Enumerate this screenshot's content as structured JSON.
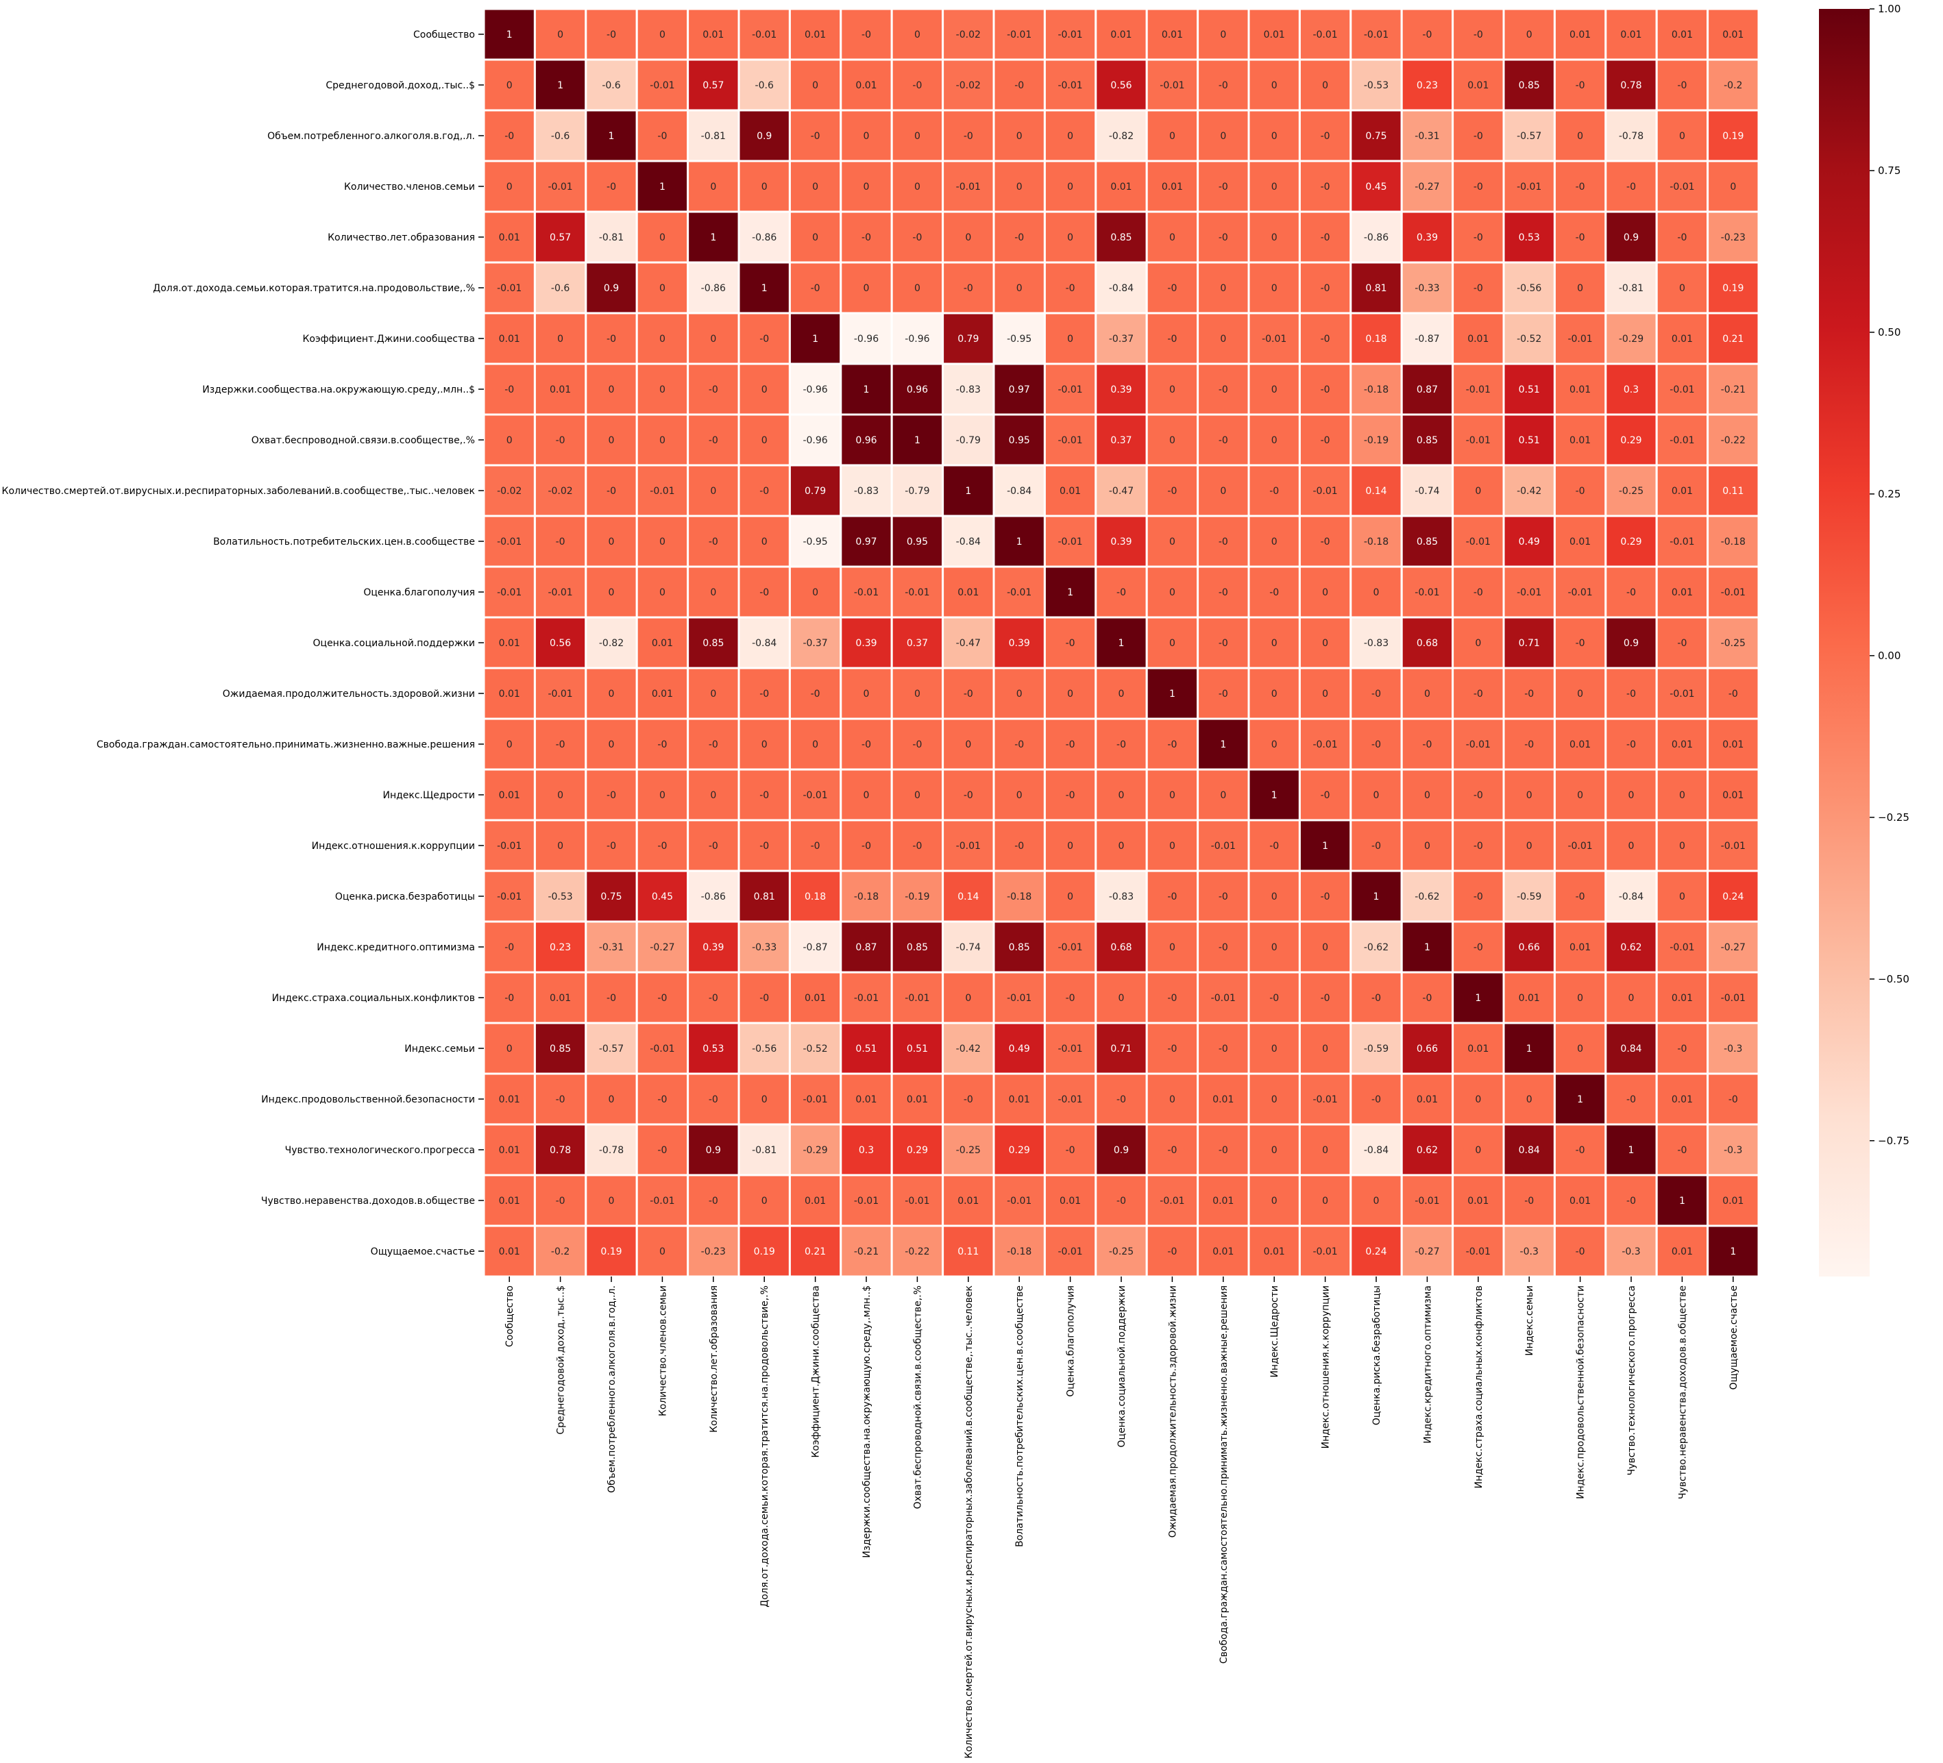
{
  "chart_data": {
    "type": "heatmap",
    "colormap": "Reds",
    "cell_border_color": "#ffffff",
    "labels": [
      "Сообщество",
      "Среднегодовой.доход,.тыс..$",
      "Объем.потребленного.алкоголя.в.год,.л.",
      "Количество.членов.семьи",
      "Количество.лет.образования",
      "Доля.от.дохода.семьи.которая.тратится.на.продовольствие,.%",
      "Коэффициент.Джини.сообщества",
      "Издержки.сообщества.на.окружающую.среду,.млн..$",
      "Охват.беспроводной.связи.в.сообществе,.%",
      "Количество.смертей.от.вирусных.и.респираторных.заболеваний.в.сообществе,.тыс..человек",
      "Волатильность.потребительских.цен.в.сообществе",
      "Оценка.благополучия",
      "Оценка.социальной.поддержки",
      "Ожидаемая.продолжительность.здоровой.жизни",
      "Свобода.граждан.самостоятельно.принимать.жизненно.важные.решения",
      "Индекс.Щедрости",
      "Индекс.отношения.к.коррупции",
      "Оценка.риска.безработицы",
      "Индекс.кредитного.оптимизма",
      "Индекс.страха.социальных.конфликтов",
      "Индекс.семьи",
      "Индекс.продовольственной.безопасности",
      "Чувство.технологического.прогресса",
      "Чувство.неравенства.доходов.в.обществе",
      "Ощущаемое.счастье"
    ],
    "annotations": [
      [
        "1",
        "0",
        "-0",
        "0",
        "0.01",
        "-0.01",
        "0.01",
        "-0",
        "0",
        "-0.02",
        "-0.01",
        "-0.01",
        "0.01",
        "0.01",
        "0",
        "0.01",
        "-0.01",
        "-0.01",
        "-0",
        "-0",
        "0",
        "0.01",
        "0.01",
        "0.01",
        "0.01"
      ],
      [
        "0",
        "1",
        "-0.6",
        "-0.01",
        "0.57",
        "-0.6",
        "0",
        "0.01",
        "-0",
        "-0.02",
        "-0",
        "-0.01",
        "0.56",
        "-0.01",
        "-0",
        "0",
        "0",
        "-0.53",
        "0.23",
        "0.01",
        "0.85",
        "-0",
        "0.78",
        "-0",
        "-0.2"
      ],
      [
        "-0",
        "-0.6",
        "1",
        "-0",
        "-0.81",
        "0.9",
        "-0",
        "0",
        "0",
        "-0",
        "0",
        "0",
        "-0.82",
        "0",
        "0",
        "0",
        "-0",
        "0.75",
        "-0.31",
        "-0",
        "-0.57",
        "0",
        "-0.78",
        "0",
        "0.19"
      ],
      [
        "0",
        "-0.01",
        "-0",
        "1",
        "0",
        "0",
        "0",
        "0",
        "0",
        "-0.01",
        "0",
        "0",
        "0.01",
        "0.01",
        "-0",
        "0",
        "-0",
        "0.45",
        "-0.27",
        "-0",
        "-0.01",
        "-0",
        "-0",
        "-0.01",
        "0"
      ],
      [
        "0.01",
        "0.57",
        "-0.81",
        "0",
        "1",
        "-0.86",
        "0",
        "-0",
        "-0",
        "0",
        "-0",
        "0",
        "0.85",
        "0",
        "-0",
        "0",
        "-0",
        "-0.86",
        "0.39",
        "-0",
        "0.53",
        "-0",
        "0.9",
        "-0",
        "-0.23"
      ],
      [
        "-0.01",
        "-0.6",
        "0.9",
        "0",
        "-0.86",
        "1",
        "-0",
        "0",
        "0",
        "-0",
        "0",
        "-0",
        "-0.84",
        "-0",
        "0",
        "0",
        "-0",
        "0.81",
        "-0.33",
        "-0",
        "-0.56",
        "0",
        "-0.81",
        "0",
        "0.19"
      ],
      [
        "0.01",
        "0",
        "-0",
        "0",
        "0",
        "-0",
        "1",
        "-0.96",
        "-0.96",
        "0.79",
        "-0.95",
        "0",
        "-0.37",
        "-0",
        "0",
        "-0.01",
        "-0",
        "0.18",
        "-0.87",
        "0.01",
        "-0.52",
        "-0.01",
        "-0.29",
        "0.01",
        "0.21"
      ],
      [
        "-0",
        "0.01",
        "0",
        "0",
        "-0",
        "0",
        "-0.96",
        "1",
        "0.96",
        "-0.83",
        "0.97",
        "-0.01",
        "0.39",
        "0",
        "-0",
        "0",
        "-0",
        "-0.18",
        "0.87",
        "-0.01",
        "0.51",
        "0.01",
        "0.3",
        "-0.01",
        "-0.21"
      ],
      [
        "0",
        "-0",
        "0",
        "0",
        "-0",
        "0",
        "-0.96",
        "0.96",
        "1",
        "-0.79",
        "0.95",
        "-0.01",
        "0.37",
        "0",
        "-0",
        "0",
        "-0",
        "-0.19",
        "0.85",
        "-0.01",
        "0.51",
        "0.01",
        "0.29",
        "-0.01",
        "-0.22"
      ],
      [
        "-0.02",
        "-0.02",
        "-0",
        "-0.01",
        "0",
        "-0",
        "0.79",
        "-0.83",
        "-0.79",
        "1",
        "-0.84",
        "0.01",
        "-0.47",
        "-0",
        "0",
        "-0",
        "-0.01",
        "0.14",
        "-0.74",
        "0",
        "-0.42",
        "-0",
        "-0.25",
        "0.01",
        "0.11"
      ],
      [
        "-0.01",
        "-0",
        "0",
        "0",
        "-0",
        "0",
        "-0.95",
        "0.97",
        "0.95",
        "-0.84",
        "1",
        "-0.01",
        "0.39",
        "0",
        "-0",
        "0",
        "-0",
        "-0.18",
        "0.85",
        "-0.01",
        "0.49",
        "0.01",
        "0.29",
        "-0.01",
        "-0.18"
      ],
      [
        "-0.01",
        "-0.01",
        "0",
        "0",
        "0",
        "-0",
        "0",
        "-0.01",
        "-0.01",
        "0.01",
        "-0.01",
        "1",
        "-0",
        "0",
        "-0",
        "-0",
        "0",
        "0",
        "-0.01",
        "-0",
        "-0.01",
        "-0.01",
        "-0",
        "0.01",
        "-0.01"
      ],
      [
        "0.01",
        "0.56",
        "-0.82",
        "0.01",
        "0.85",
        "-0.84",
        "-0.37",
        "0.39",
        "0.37",
        "-0.47",
        "0.39",
        "-0",
        "1",
        "0",
        "-0",
        "0",
        "0",
        "-0.83",
        "0.68",
        "0",
        "0.71",
        "-0",
        "0.9",
        "-0",
        "-0.25"
      ],
      [
        "0.01",
        "-0.01",
        "0",
        "0.01",
        "0",
        "-0",
        "-0",
        "0",
        "0",
        "-0",
        "0",
        "0",
        "0",
        "1",
        "-0",
        "0",
        "0",
        "-0",
        "0",
        "-0",
        "-0",
        "0",
        "-0",
        "-0.01",
        "-0"
      ],
      [
        "0",
        "-0",
        "0",
        "-0",
        "-0",
        "0",
        "0",
        "-0",
        "-0",
        "0",
        "-0",
        "-0",
        "-0",
        "-0",
        "1",
        "0",
        "-0.01",
        "-0",
        "-0",
        "-0.01",
        "-0",
        "0.01",
        "-0",
        "0.01",
        "0.01"
      ],
      [
        "0.01",
        "0",
        "-0",
        "0",
        "0",
        "-0",
        "-0.01",
        "0",
        "0",
        "-0",
        "0",
        "-0",
        "0",
        "0",
        "0",
        "1",
        "-0",
        "0",
        "0",
        "-0",
        "0",
        "0",
        "0",
        "0",
        "0.01"
      ],
      [
        "-0.01",
        "0",
        "-0",
        "-0",
        "-0",
        "-0",
        "-0",
        "-0",
        "-0",
        "-0.01",
        "-0",
        "0",
        "0",
        "0",
        "-0.01",
        "-0",
        "1",
        "-0",
        "0",
        "-0",
        "0",
        "-0.01",
        "0",
        "0",
        "-0.01"
      ],
      [
        "-0.01",
        "-0.53",
        "0.75",
        "0.45",
        "-0.86",
        "0.81",
        "0.18",
        "-0.18",
        "-0.19",
        "0.14",
        "-0.18",
        "0",
        "-0.83",
        "-0",
        "-0",
        "0",
        "-0",
        "1",
        "-0.62",
        "-0",
        "-0.59",
        "-0",
        "-0.84",
        "0",
        "0.24"
      ],
      [
        "-0",
        "0.23",
        "-0.31",
        "-0.27",
        "0.39",
        "-0.33",
        "-0.87",
        "0.87",
        "0.85",
        "-0.74",
        "0.85",
        "-0.01",
        "0.68",
        "0",
        "-0",
        "0",
        "0",
        "-0.62",
        "1",
        "-0",
        "0.66",
        "0.01",
        "0.62",
        "-0.01",
        "-0.27"
      ],
      [
        "-0",
        "0.01",
        "-0",
        "-0",
        "-0",
        "-0",
        "0.01",
        "-0.01",
        "-0.01",
        "0",
        "-0.01",
        "-0",
        "0",
        "-0",
        "-0.01",
        "-0",
        "-0",
        "-0",
        "-0",
        "1",
        "0.01",
        "0",
        "0",
        "0.01",
        "-0.01"
      ],
      [
        "0",
        "0.85",
        "-0.57",
        "-0.01",
        "0.53",
        "-0.56",
        "-0.52",
        "0.51",
        "0.51",
        "-0.42",
        "0.49",
        "-0.01",
        "0.71",
        "-0",
        "-0",
        "0",
        "0",
        "-0.59",
        "0.66",
        "0.01",
        "1",
        "0",
        "0.84",
        "-0",
        "-0.3"
      ],
      [
        "0.01",
        "-0",
        "0",
        "-0",
        "-0",
        "0",
        "-0.01",
        "0.01",
        "0.01",
        "-0",
        "0.01",
        "-0.01",
        "-0",
        "0",
        "0.01",
        "0",
        "-0.01",
        "-0",
        "0.01",
        "0",
        "0",
        "1",
        "-0",
        "0.01",
        "-0"
      ],
      [
        "0.01",
        "0.78",
        "-0.78",
        "-0",
        "0.9",
        "-0.81",
        "-0.29",
        "0.3",
        "0.29",
        "-0.25",
        "0.29",
        "-0",
        "0.9",
        "-0",
        "-0",
        "0",
        "0",
        "-0.84",
        "0.62",
        "0",
        "0.84",
        "-0",
        "1",
        "-0",
        "-0.3"
      ],
      [
        "0.01",
        "-0",
        "0",
        "-0.01",
        "-0",
        "0",
        "0.01",
        "-0.01",
        "-0.01",
        "0.01",
        "-0.01",
        "0.01",
        "-0",
        "-0.01",
        "0.01",
        "0",
        "0",
        "0",
        "-0.01",
        "0.01",
        "-0",
        "0.01",
        "-0",
        "1",
        "0.01"
      ],
      [
        "0.01",
        "-0.2",
        "0.19",
        "0",
        "-0.23",
        "0.19",
        "0.21",
        "-0.21",
        "-0.22",
        "0.11",
        "-0.18",
        "-0.01",
        "-0.25",
        "-0",
        "0.01",
        "0.01",
        "-0.01",
        "0.24",
        "-0.27",
        "-0.01",
        "-0.3",
        "-0",
        "-0.3",
        "0.01",
        "1"
      ]
    ],
    "colorbar": {
      "ticks": [
        1.0,
        0.75,
        0.5,
        0.25,
        0.0,
        -0.25,
        -0.5,
        -0.75
      ],
      "tick_labels": [
        "1.00",
        "0.75",
        "0.50",
        "0.25",
        "0.00",
        "−0.25",
        "−0.50",
        "−0.75"
      ],
      "range": [
        -0.96,
        1.0
      ]
    }
  }
}
